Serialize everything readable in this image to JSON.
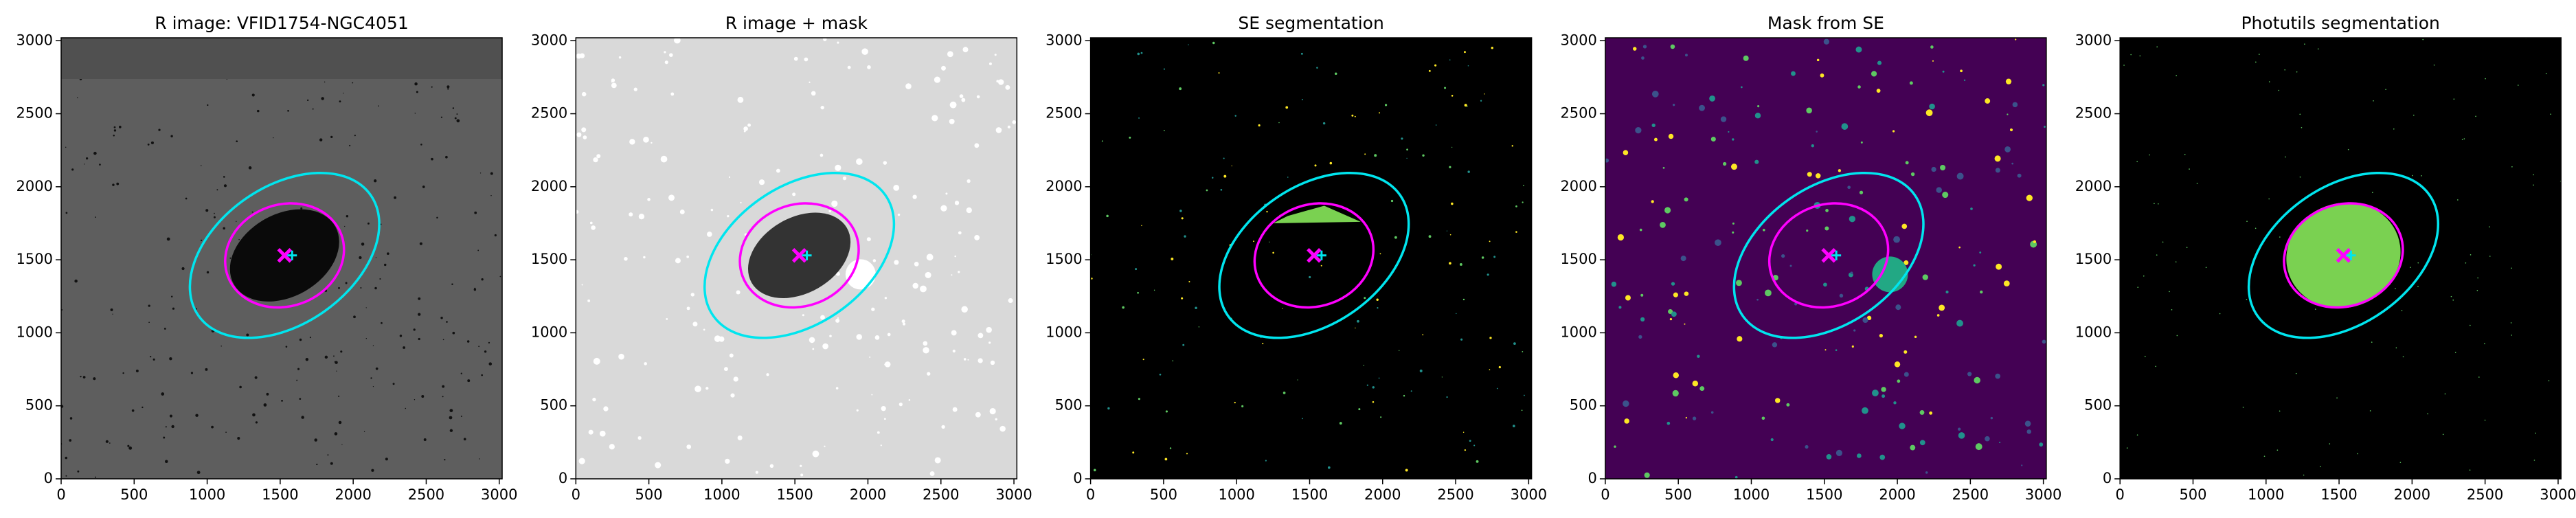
{
  "chart_data": [
    {
      "type": "image",
      "title": "R image: VFID1754-NGC4051",
      "background": "#5e5e5e",
      "xlim": [
        0,
        3020
      ],
      "ylim": [
        0,
        3020
      ],
      "xticks": [
        0,
        500,
        1000,
        1500,
        2000,
        2500,
        3000
      ],
      "yticks": [
        0,
        500,
        1000,
        1500,
        2000,
        2500,
        3000
      ]
    },
    {
      "type": "image",
      "title": "R image + mask",
      "background": "#d9d9d9",
      "xlim": [
        0,
        3020
      ],
      "ylim": [
        0,
        3020
      ],
      "xticks": [
        0,
        500,
        1000,
        1500,
        2000,
        2500,
        3000
      ],
      "yticks": [
        0,
        500,
        1000,
        1500,
        2000,
        2500,
        3000
      ]
    },
    {
      "type": "image",
      "title": "SE segmentation",
      "background": "#000000",
      "xlim": [
        0,
        3020
      ],
      "ylim": [
        0,
        3020
      ],
      "xticks": [
        0,
        500,
        1000,
        1500,
        2000,
        2500,
        3000
      ],
      "yticks": [
        0,
        500,
        1000,
        1500,
        2000,
        2500,
        3000
      ]
    },
    {
      "type": "image",
      "title": "Mask from SE",
      "background": "#440154",
      "xlim": [
        0,
        3020
      ],
      "ylim": [
        0,
        3020
      ],
      "xticks": [
        0,
        500,
        1000,
        1500,
        2000,
        2500,
        3000
      ],
      "yticks": [
        0,
        500,
        1000,
        1500,
        2000,
        2500,
        3000
      ]
    },
    {
      "type": "image",
      "title": "Photutils segmentation",
      "background": "#000000",
      "xlim": [
        0,
        3020
      ],
      "ylim": [
        0,
        3020
      ],
      "xticks": [
        0,
        500,
        1000,
        1500,
        2000,
        2500,
        3000
      ],
      "yticks": [
        0,
        500,
        1000,
        1500,
        2000,
        2500,
        3000
      ]
    }
  ]
}
